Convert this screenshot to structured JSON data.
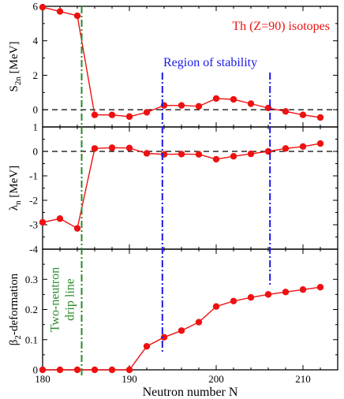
{
  "chart_data": {
    "type": "line",
    "xlabel": "Neutron  number  N",
    "xlim": [
      180,
      214
    ],
    "xticks": [
      180,
      190,
      200,
      210
    ],
    "x": [
      180,
      182,
      184,
      186,
      188,
      190,
      192,
      194,
      196,
      198,
      200,
      202,
      204,
      206,
      208,
      210,
      212
    ],
    "colors": {
      "series": "#ee1111",
      "drip_line": "#2a8a2a",
      "stability": "#1a1ae6",
      "zero_line": "#000000"
    },
    "panels": [
      {
        "id": "s2n",
        "ylabel": {
          "main": "S",
          "sub": "2n",
          "tail": " [MeV]"
        },
        "ylim": [
          -1,
          6
        ],
        "yticks": [
          0,
          2,
          4,
          6
        ],
        "values": [
          5.95,
          5.7,
          5.45,
          -0.3,
          -0.3,
          -0.4,
          -0.15,
          0.25,
          0.25,
          0.2,
          0.65,
          0.6,
          0.35,
          0.1,
          -0.1,
          -0.3,
          -0.45
        ],
        "zero_line": true,
        "annotation": "Th (Z=90) isotopes",
        "stability_label": "Region of stability"
      },
      {
        "id": "lambda",
        "ylabel": {
          "main": "λ",
          "sub": "n",
          "tail": " [MeV]"
        },
        "ylim": [
          -4,
          1
        ],
        "yticks": [
          -4,
          -3,
          -2,
          -1,
          0,
          1
        ],
        "values": [
          -2.9,
          -2.75,
          -3.15,
          0.12,
          0.15,
          0.14,
          -0.08,
          -0.12,
          -0.11,
          -0.12,
          -0.32,
          -0.2,
          -0.1,
          0.0,
          0.12,
          0.2,
          0.32
        ],
        "zero_line": true
      },
      {
        "id": "beta2",
        "ylabel": {
          "main": "β",
          "sub": "2",
          "tail": "-deformation"
        },
        "ylim": [
          0,
          0.4
        ],
        "yticks": [
          0,
          0.1,
          0.2,
          0.3
        ],
        "values": [
          0,
          0,
          0,
          0,
          0,
          0,
          0.078,
          0.108,
          0.13,
          0.158,
          0.21,
          0.228,
          0.24,
          0.25,
          0.258,
          0.266,
          0.274
        ],
        "zero_line": false,
        "drip_label": [
          "Two-neutron",
          "drip line"
        ]
      }
    ],
    "drip_line_x": 184.5,
    "stability_lines_x": [
      193.8,
      206.2
    ]
  }
}
